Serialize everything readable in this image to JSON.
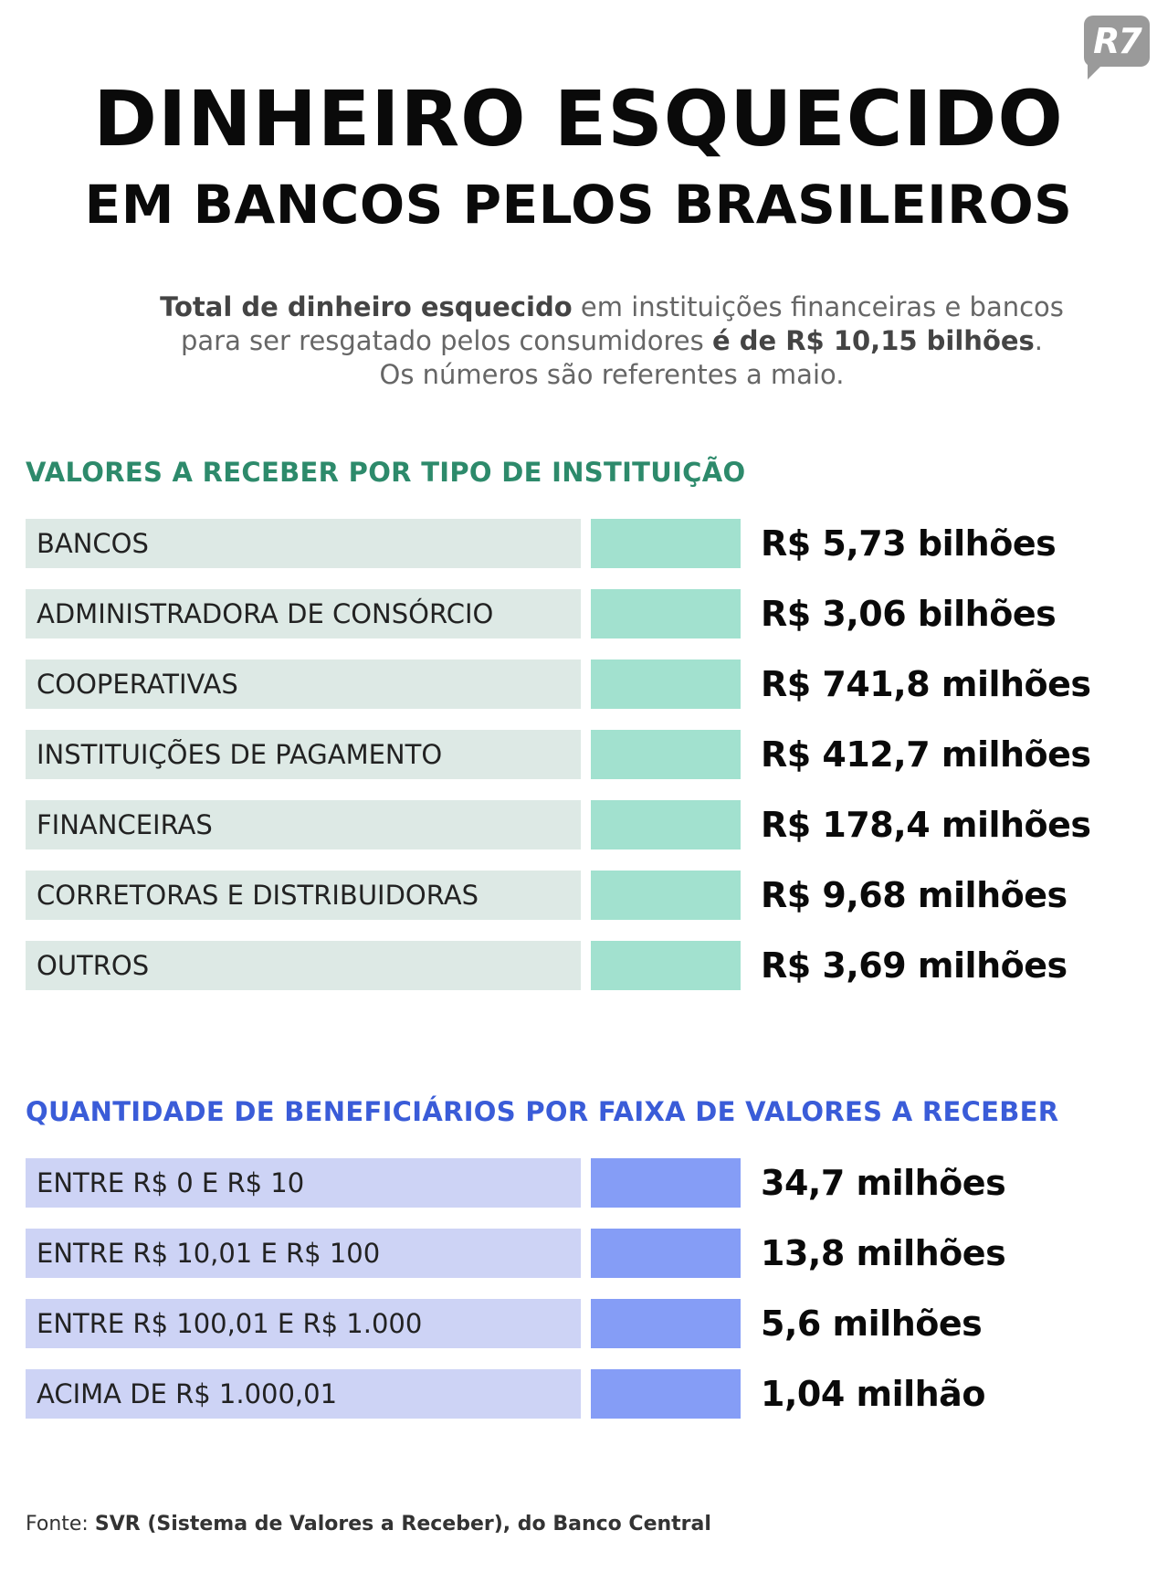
{
  "logo": {
    "text": "R7"
  },
  "header": {
    "title": "DINHEIRO ESQUECIDO",
    "subtitle": "EM BANCOS PELOS BRASILEIROS"
  },
  "intro": {
    "line1_bold": "Total de dinheiro esquecido",
    "line1_rest": " em instituições financeiras e bancos",
    "line2_start": "para ser resgatado pelos consumidores ",
    "line2_bold": "é de R$ 10,15 bilhões",
    "line2_end": ".",
    "line3": "Os números são referentes a maio."
  },
  "section_institutions": {
    "title": "VALORES A RECEBER POR TIPO DE INSTITUIÇÃO",
    "items": [
      {
        "label": "BANCOS",
        "value": "R$ 5,73 bilhões"
      },
      {
        "label": "ADMINISTRADORA DE CONSÓRCIO",
        "value": "R$ 3,06 bilhões"
      },
      {
        "label": "COOPERATIVAS",
        "value": "R$ 741,8 milhões"
      },
      {
        "label": "INSTITUIÇÕES DE PAGAMENTO",
        "value": "R$ 412,7 milhões"
      },
      {
        "label": "FINANCEIRAS",
        "value": "R$ 178,4 milhões"
      },
      {
        "label": "CORRETORAS E DISTRIBUIDORAS",
        "value": "R$ 9,68 milhões"
      },
      {
        "label": "OUTROS",
        "value": "R$ 3,69 milhões"
      }
    ]
  },
  "section_beneficiaries": {
    "title": "QUANTIDADE DE BENEFICIÁRIOS POR FAIXA DE VALORES A RECEBER",
    "items": [
      {
        "label": "ENTRE R$ 0 E R$ 10",
        "value": "34,7 milhões"
      },
      {
        "label": "ENTRE R$ 10,01 E R$ 100",
        "value": "13,8 milhões"
      },
      {
        "label": "ENTRE R$ 100,01 E R$ 1.000",
        "value": "5,6 milhões"
      },
      {
        "label": "ACIMA DE R$ 1.000,01",
        "value": "1,04 milhão"
      }
    ]
  },
  "source": {
    "prefix": "Fonte: ",
    "text": "SVR (Sistema de Valores a Receber), do Banco Central"
  },
  "colors": {
    "green_title": "#2d8a6b",
    "green_label_bg": "#dde9e5",
    "green_bar": "#a2e1cf",
    "blue_title": "#3a5cd8",
    "blue_label_bg": "#cdd3f5",
    "blue_bar": "#859df6"
  }
}
